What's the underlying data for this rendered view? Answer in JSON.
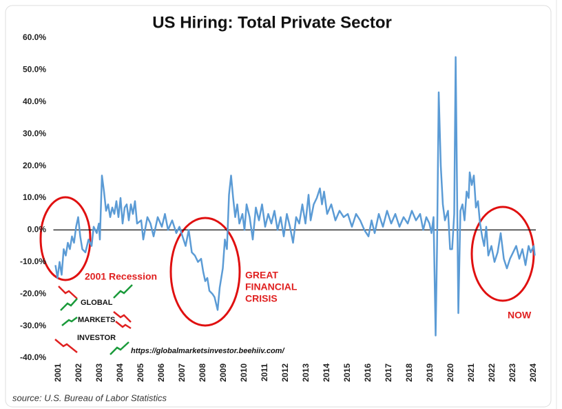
{
  "chart_data": {
    "type": "line",
    "title": "US Hiring: Total Private Sector",
    "color": "#5b9bd5",
    "x": [
      2000.85,
      2000.95,
      2001.05,
      2001.15,
      2001.25,
      2001.35,
      2001.45,
      2001.55,
      2001.65,
      2001.75,
      2001.85,
      2001.95,
      2002.05,
      2002.15,
      2002.3,
      2002.45,
      2002.6,
      2002.7,
      2002.85,
      2002.95,
      2003.0,
      2003.1,
      2003.2,
      2003.3,
      2003.4,
      2003.5,
      2003.6,
      2003.7,
      2003.8,
      2003.9,
      2004.0,
      2004.1,
      2004.2,
      2004.3,
      2004.4,
      2004.5,
      2004.6,
      2004.7,
      2004.8,
      2005.0,
      2005.1,
      2005.3,
      2005.45,
      2005.6,
      2005.8,
      2006.0,
      2006.15,
      2006.3,
      2006.5,
      2006.7,
      2006.85,
      2007.0,
      2007.15,
      2007.3,
      2007.45,
      2007.6,
      2007.75,
      2007.9,
      2008.0,
      2008.1,
      2008.2,
      2008.3,
      2008.45,
      2008.55,
      2008.7,
      2008.8,
      2008.95,
      2009.05,
      2009.15,
      2009.25,
      2009.35,
      2009.45,
      2009.55,
      2009.65,
      2009.75,
      2009.9,
      2010.0,
      2010.1,
      2010.25,
      2010.4,
      2010.55,
      2010.7,
      2010.85,
      2011.0,
      2011.15,
      2011.3,
      2011.45,
      2011.6,
      2011.75,
      2011.9,
      2012.05,
      2012.2,
      2012.35,
      2012.5,
      2012.65,
      2012.8,
      2012.95,
      2013.1,
      2013.2,
      2013.35,
      2013.5,
      2013.65,
      2013.75,
      2013.85,
      2014.0,
      2014.2,
      2014.4,
      2014.6,
      2014.8,
      2015.0,
      2015.2,
      2015.4,
      2015.6,
      2015.8,
      2016.0,
      2016.15,
      2016.3,
      2016.5,
      2016.7,
      2016.9,
      2017.1,
      2017.3,
      2017.5,
      2017.7,
      2017.9,
      2018.1,
      2018.3,
      2018.5,
      2018.65,
      2018.8,
      2018.95,
      2019.05,
      2019.15,
      2019.25,
      2019.32,
      2019.4,
      2019.5,
      2019.6,
      2019.7,
      2019.85,
      2019.95,
      2020.05,
      2020.15,
      2020.22,
      2020.35,
      2020.45,
      2020.55,
      2020.65,
      2020.75,
      2020.85,
      2020.9,
      2021.0,
      2021.1,
      2021.2,
      2021.3,
      2021.4,
      2021.5,
      2021.6,
      2021.7,
      2021.8,
      2021.95,
      2022.1,
      2022.25,
      2022.4,
      2022.55,
      2022.7,
      2022.85,
      2023.0,
      2023.15,
      2023.3,
      2023.45,
      2023.6,
      2023.75,
      2023.85,
      2024.0,
      2024.05
    ],
    "values": [
      -11,
      -15,
      -10,
      -14,
      -6,
      -8,
      -4,
      -6,
      -2,
      -4,
      1,
      4,
      -2,
      -6,
      -7,
      -3,
      -5,
      1,
      -1,
      2,
      -3,
      17,
      12,
      6,
      8,
      4,
      7,
      5,
      9,
      4,
      10,
      2,
      7,
      8,
      3,
      8,
      5,
      9,
      2,
      3,
      -3,
      4,
      2,
      -2,
      4,
      1,
      5,
      0,
      3,
      -1,
      1,
      -2,
      -5,
      0,
      -7,
      -8,
      -10,
      -9,
      -13,
      -16,
      -15,
      -19,
      -20,
      -21,
      -25,
      -18,
      -12,
      -3,
      -6,
      11,
      17,
      10,
      4,
      8,
      2,
      5,
      0,
      8,
      4,
      -3,
      7,
      3,
      8,
      1,
      5,
      2,
      6,
      0,
      4,
      -2,
      5,
      1,
      -4,
      4,
      2,
      8,
      2,
      11,
      3,
      8,
      10,
      13,
      8,
      12,
      5,
      8,
      3,
      6,
      4,
      5,
      1,
      5,
      3,
      0,
      -2,
      3,
      -1,
      5,
      1,
      6,
      2,
      5,
      1,
      4,
      2,
      6,
      3,
      5,
      0,
      4,
      2,
      -1,
      4,
      -33,
      -5,
      43,
      20,
      8,
      3,
      6,
      -6,
      -6,
      5,
      54,
      -26,
      6,
      8,
      3,
      12,
      10,
      18,
      14,
      17,
      7,
      9,
      2,
      -2,
      -5,
      1,
      -8,
      -5,
      -10,
      -7,
      -1,
      -9,
      -12,
      -9,
      -7,
      -5,
      -9,
      -6,
      -11,
      -5,
      -7,
      -5,
      -8
    ],
    "xlim": [
      2000.75,
      2024.1
    ],
    "xticks": [
      2001,
      2002,
      2003,
      2004,
      2005,
      2006,
      2007,
      2008,
      2009,
      2010,
      2011,
      2012,
      2013,
      2014,
      2015,
      2016,
      2017,
      2018,
      2019,
      2020,
      2021,
      2022,
      2023,
      2024
    ],
    "ylim": [
      -40,
      60
    ],
    "yticks": [
      {
        "value": -40,
        "label": "-40.0%"
      },
      {
        "value": -30,
        "label": "-30.0%"
      },
      {
        "value": -20,
        "label": "-20.0%"
      },
      {
        "value": -10,
        "label": "-10.0%"
      },
      {
        "value": 0,
        "label": "0.0%"
      },
      {
        "value": 10,
        "label": "10.0%"
      },
      {
        "value": 20,
        "label": "20.0%"
      },
      {
        "value": 30,
        "label": "30.0%"
      },
      {
        "value": 40,
        "label": "40.0%"
      },
      {
        "value": 50,
        "label": "50.0%"
      },
      {
        "value": 60,
        "label": "60.0%"
      }
    ],
    "grid": false,
    "annotations": {
      "recession": "2001 Recession",
      "gfc": [
        "GREAT",
        "FINANCIAL",
        "CRISIS"
      ],
      "now": "NOW"
    },
    "watermark": [
      "GLOBAL",
      "MARKETS",
      "INVESTOR"
    ],
    "url": "https://globalmarketsinvestor.beehiiv.com/",
    "source": "source: U.S. Bureau of Labor Statistics"
  }
}
